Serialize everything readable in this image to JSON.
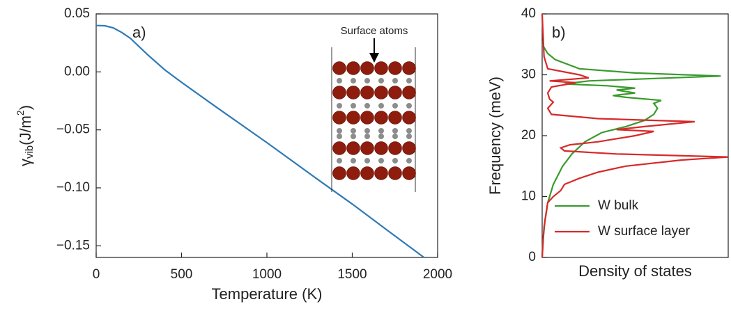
{
  "chart_data": [
    {
      "type": "line",
      "annotation": "a)",
      "inset_label": "Surface atoms",
      "xlabel": "Temperature (K)",
      "ylabel": {
        "symbol": "γ",
        "subscript": "vib",
        "unit": "(J/m",
        "superscript": "2",
        "close": ")"
      },
      "xlim": [
        0,
        2000
      ],
      "xticks": [
        0,
        500,
        1000,
        1500,
        2000
      ],
      "ylim": [
        -0.16,
        0.05
      ],
      "yticks": [
        0.05,
        {
          "value": 0,
          "label": "0.00"
        },
        {
          "value": -0.05,
          "label": "−0.05"
        },
        {
          "value": -0.1,
          "label": "−0.10"
        },
        {
          "value": -0.15,
          "label": "−0.15"
        }
      ],
      "x": [
        0,
        50,
        100,
        150,
        200,
        300,
        400,
        500,
        700,
        1000,
        1300,
        1500,
        1700,
        1920
      ],
      "series": [
        {
          "color": "#2e7ab6",
          "values": [
            0.04,
            0.0398,
            0.038,
            0.034,
            0.029,
            0.015,
            0.002,
            -0.009,
            -0.03,
            -0.061,
            -0.093,
            -0.114,
            -0.136,
            -0.16
          ]
        }
      ]
    },
    {
      "type": "dos",
      "annotation": "b)",
      "xlabel": "Density of states",
      "ylabel": "Frequency (meV)",
      "xlim": [
        0,
        1
      ],
      "ylim": [
        0,
        40
      ],
      "yticks": [
        0,
        10,
        20,
        30,
        40
      ],
      "legend": "lower-left",
      "series": [
        {
          "name": "W bulk",
          "color": "#3a9a2e",
          "y": [
            0,
            3,
            6,
            9,
            12,
            15,
            17,
            19,
            20.5,
            21.5,
            22.5,
            23.5,
            24.5,
            25.3,
            25.8,
            26.3,
            26.6,
            27,
            27.5,
            27.8,
            28.2,
            28.5,
            29,
            29.8,
            30.3,
            31,
            32.5,
            33.5,
            35
          ],
          "values": [
            0,
            0.005,
            0.015,
            0.03,
            0.06,
            0.11,
            0.16,
            0.23,
            0.32,
            0.45,
            0.55,
            0.6,
            0.62,
            0.6,
            0.64,
            0.45,
            0.38,
            0.5,
            0.4,
            0.5,
            0.35,
            0.12,
            0.25,
            0.96,
            0.5,
            0.2,
            0.07,
            0.03,
            0
          ]
        },
        {
          "name": "W surface layer",
          "color": "#d62a2a",
          "y": [
            0,
            5,
            9,
            10,
            11,
            12,
            13,
            14,
            15,
            16,
            16.5,
            17,
            17.5,
            18,
            18.5,
            19,
            20,
            20.7,
            21,
            21.5,
            22.3,
            22.8,
            23.5,
            24.5,
            25.5,
            26,
            27,
            28,
            28.7,
            29,
            29.5,
            30,
            31,
            33,
            40
          ],
          "values": [
            0,
            0.01,
            0.03,
            0.06,
            0.1,
            0.12,
            0.2,
            0.3,
            0.45,
            0.75,
            1.0,
            0.4,
            0.12,
            0.1,
            0.15,
            0.3,
            0.5,
            0.6,
            0.4,
            0.55,
            0.82,
            0.3,
            0.05,
            0.03,
            0.06,
            0.04,
            0.03,
            0.05,
            0.18,
            0.04,
            0.25,
            0.2,
            0.03,
            0.01,
            0
          ]
        }
      ]
    }
  ]
}
